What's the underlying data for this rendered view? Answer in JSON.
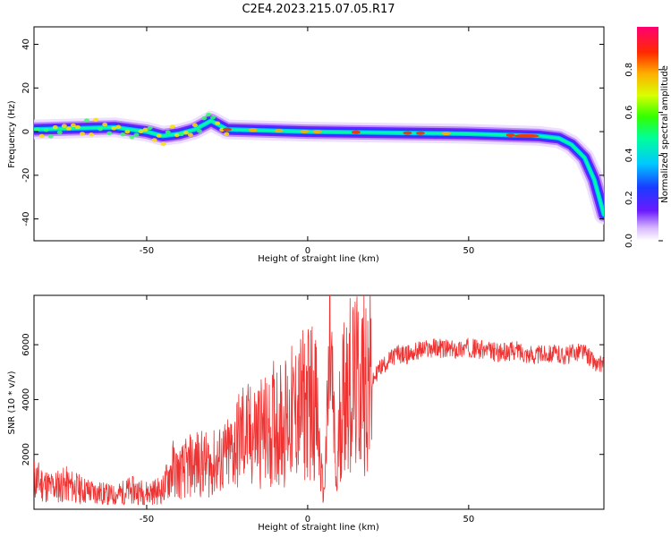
{
  "title": "C2E4.2023.215.07.05.R17",
  "chart_data": [
    {
      "type": "heatmap",
      "xlabel": "Height of straight line (km)",
      "ylabel": "Frequency (Hz)",
      "xlim": [
        -85,
        92
      ],
      "ylim": [
        -50,
        48
      ],
      "xticks": [
        -50,
        0,
        50
      ],
      "yticks": [
        -40,
        -20,
        0,
        20,
        40
      ],
      "colorbar": {
        "label": "Normalized spectral amplitude",
        "range": [
          0.0,
          1.0
        ],
        "ticks": [
          0.0,
          0.2,
          0.4,
          0.6,
          0.8
        ]
      },
      "ridge": [
        {
          "x": -85,
          "y": 1
        },
        {
          "x": -60,
          "y": 2
        },
        {
          "x": -50,
          "y": 0
        },
        {
          "x": -45,
          "y": -2
        },
        {
          "x": -40,
          "y": -1
        },
        {
          "x": -35,
          "y": 1
        },
        {
          "x": -30,
          "y": 5
        },
        {
          "x": -25,
          "y": 1
        },
        {
          "x": 0,
          "y": 0
        },
        {
          "x": 50,
          "y": -1
        },
        {
          "x": 72,
          "y": -2
        },
        {
          "x": 78,
          "y": -3
        },
        {
          "x": 82,
          "y": -6
        },
        {
          "x": 86,
          "y": -12
        },
        {
          "x": 89,
          "y": -22
        },
        {
          "x": 92,
          "y": -38
        }
      ],
      "grid": false,
      "colormap": "rainbow"
    },
    {
      "type": "line",
      "xlabel": "Height of straight line (km)",
      "ylabel": "SNR (10 * v/v)",
      "xlim": [
        -85,
        92
      ],
      "ylim": [
        0,
        7800
      ],
      "xticks": [
        -50,
        0,
        50
      ],
      "yticks": [
        2000,
        4000,
        6000
      ],
      "series": [
        {
          "color": "#ee3333",
          "points": [
            [
              -85,
              1100
            ],
            [
              -80,
              800
            ],
            [
              -75,
              900
            ],
            [
              -70,
              700
            ],
            [
              -65,
              600
            ],
            [
              -60,
              500
            ],
            [
              -55,
              700
            ],
            [
              -50,
              600
            ],
            [
              -45,
              700
            ],
            [
              -42,
              1500
            ],
            [
              -40,
              1300
            ],
            [
              -35,
              1700
            ],
            [
              -30,
              1600
            ],
            [
              -25,
              1900
            ],
            [
              -22,
              2400
            ],
            [
              -20,
              2800
            ],
            [
              -18,
              2600
            ],
            [
              -15,
              2900
            ],
            [
              -12,
              2700
            ],
            [
              -10,
              3300
            ],
            [
              -8,
              3100
            ],
            [
              -5,
              3400
            ],
            [
              -2,
              3700
            ],
            [
              0,
              3900
            ],
            [
              2,
              4100
            ],
            [
              3,
              3200
            ],
            [
              4,
              1500
            ],
            [
              5,
              500
            ],
            [
              6,
              2800
            ],
            [
              7,
              6000
            ],
            [
              8,
              3200
            ],
            [
              9,
              600
            ],
            [
              10,
              3500
            ],
            [
              12,
              4700
            ],
            [
              15,
              4400
            ],
            [
              18,
              4900
            ],
            [
              20,
              4600
            ],
            [
              22,
              5100
            ],
            [
              25,
              5400
            ],
            [
              28,
              5700
            ],
            [
              30,
              5600
            ],
            [
              35,
              5800
            ],
            [
              40,
              5900
            ],
            [
              45,
              5800
            ],
            [
              50,
              5900
            ],
            [
              55,
              5800
            ],
            [
              60,
              5700
            ],
            [
              65,
              5800
            ],
            [
              70,
              5600
            ],
            [
              75,
              5700
            ],
            [
              80,
              5600
            ],
            [
              85,
              5800
            ],
            [
              88,
              5500
            ],
            [
              90,
              5200
            ],
            [
              92,
              5400
            ]
          ]
        }
      ],
      "grid": false
    }
  ]
}
